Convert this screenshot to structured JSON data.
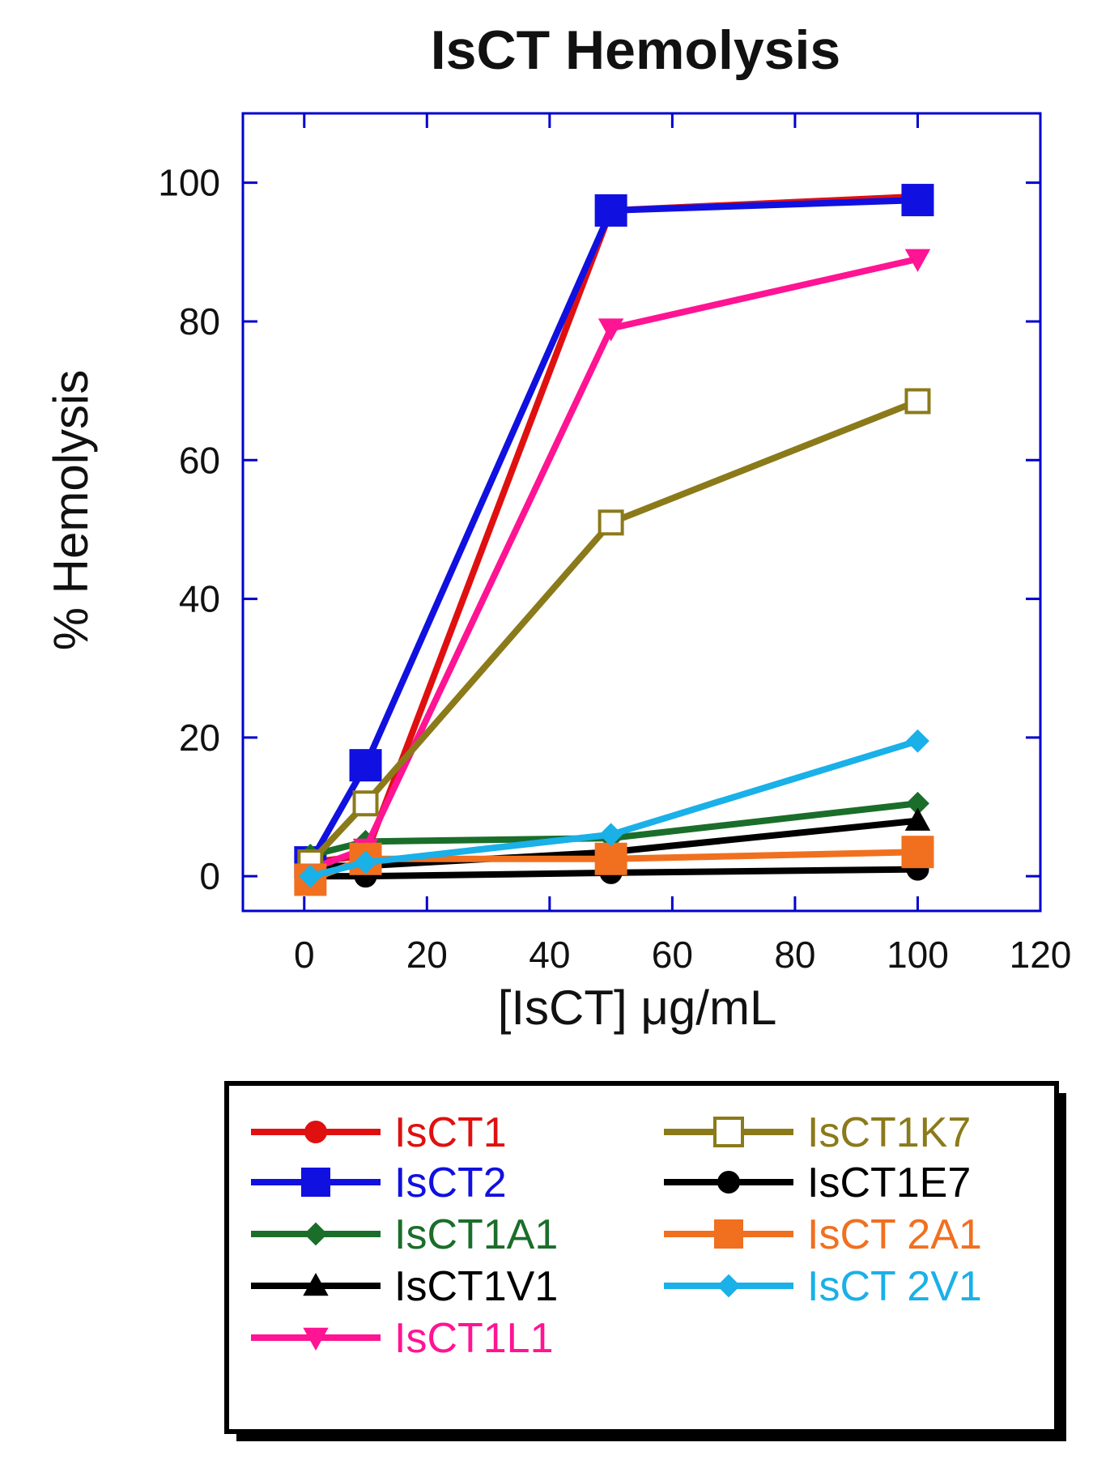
{
  "chart_data": {
    "type": "line",
    "title": "IsCT Hemolysis",
    "xlabel": "[IsCT] μg/mL",
    "ylabel": "% Hemolysis",
    "xlim": [
      -10,
      120
    ],
    "ylim": [
      -5,
      110
    ],
    "xticks": [
      0,
      20,
      40,
      60,
      80,
      100,
      120
    ],
    "yticks": [
      0,
      20,
      40,
      60,
      80,
      100
    ],
    "axis_color": "#0000cc",
    "grid": false,
    "legend_position": "below",
    "series": [
      {
        "name": "IsCT1",
        "color": "#e01010",
        "marker": "circle",
        "filled": true,
        "x": [
          1,
          10,
          50,
          100
        ],
        "y": [
          2,
          3,
          96,
          98
        ]
      },
      {
        "name": "IsCT2",
        "color": "#1010e0",
        "marker": "square",
        "filled": true,
        "x": [
          1,
          10,
          50,
          100
        ],
        "y": [
          2,
          16,
          96,
          97.5
        ]
      },
      {
        "name": "IsCT1A1",
        "color": "#1a6e2a",
        "marker": "diamond",
        "filled": true,
        "x": [
          1,
          10,
          50,
          100
        ],
        "y": [
          3,
          5,
          5.5,
          10.5
        ]
      },
      {
        "name": "IsCT1V1",
        "color": "#000000",
        "marker": "triangle-up",
        "filled": true,
        "x": [
          1,
          10,
          50,
          100
        ],
        "y": [
          1.5,
          1.5,
          3.5,
          8
        ]
      },
      {
        "name": "IsCT1L1",
        "color": "#ff1493",
        "marker": "triangle-down",
        "filled": true,
        "x": [
          1,
          10,
          50,
          100
        ],
        "y": [
          1,
          4,
          79,
          89
        ]
      },
      {
        "name": "IsCT1K7",
        "color": "#8b7a1a",
        "marker": "square",
        "filled": false,
        "x": [
          1,
          10,
          50,
          100
        ],
        "y": [
          2,
          10.5,
          51,
          68.5
        ]
      },
      {
        "name": "IsCT1E7",
        "color": "#000000",
        "marker": "circle",
        "filled": true,
        "x": [
          1,
          10,
          50,
          100
        ],
        "y": [
          0,
          0,
          0.5,
          1
        ]
      },
      {
        "name": "IsCT 2A1",
        "color": "#f07020",
        "marker": "square",
        "filled": true,
        "x": [
          1,
          10,
          50,
          100
        ],
        "y": [
          -0.5,
          2.5,
          2.5,
          3.5
        ]
      },
      {
        "name": "IsCT 2V1",
        "color": "#1ab0e8",
        "marker": "diamond",
        "filled": true,
        "x": [
          1,
          10,
          50,
          100
        ],
        "y": [
          0,
          2,
          6,
          19.5
        ]
      }
    ]
  }
}
